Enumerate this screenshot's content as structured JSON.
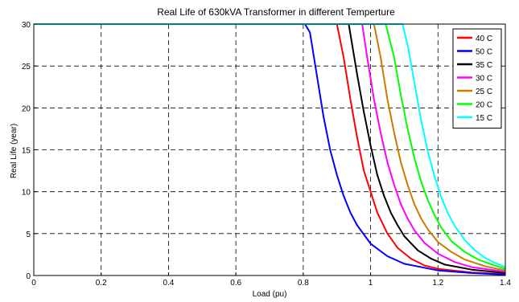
{
  "chart_data": {
    "type": "line",
    "title": "Real Life of 630kVA Transformer in different Temperture",
    "xlabel": "Load (pu)",
    "ylabel": "Real Life (year)",
    "xlim": [
      0,
      1.4
    ],
    "ylim": [
      0,
      30
    ],
    "xticks": [
      0,
      0.2,
      0.4,
      0.6,
      0.8,
      1,
      1.2,
      1.4
    ],
    "yticks": [
      0,
      5,
      10,
      15,
      20,
      25,
      30
    ],
    "xtick_labels": [
      "0",
      "0.2",
      "0.4",
      "0.6",
      "0.8",
      "1",
      "1.2",
      "1.4"
    ],
    "ytick_labels": [
      "0",
      "5",
      "10",
      "15",
      "20",
      "25",
      "30"
    ],
    "grid": true,
    "legend_position": "top-right",
    "series": [
      {
        "name": "40 C",
        "color": "#ff0000",
        "points": [
          [
            0,
            30
          ],
          [
            0.9,
            30
          ],
          [
            0.92,
            26
          ],
          [
            0.94,
            21
          ],
          [
            0.96,
            16.5
          ],
          [
            0.98,
            12.5
          ],
          [
            1.0,
            10
          ],
          [
            1.02,
            7.5
          ],
          [
            1.05,
            5
          ],
          [
            1.08,
            3.3
          ],
          [
            1.12,
            2
          ],
          [
            1.16,
            1.2
          ],
          [
            1.2,
            0.8
          ],
          [
            1.3,
            0.35
          ],
          [
            1.4,
            0.15
          ]
        ]
      },
      {
        "name": "50 C",
        "color": "#0000ff",
        "points": [
          [
            0,
            30
          ],
          [
            0.805,
            30
          ],
          [
            0.82,
            29
          ],
          [
            0.84,
            24
          ],
          [
            0.86,
            19
          ],
          [
            0.88,
            15
          ],
          [
            0.9,
            12
          ],
          [
            0.92,
            9.5
          ],
          [
            0.94,
            7.5
          ],
          [
            0.96,
            6
          ],
          [
            1.0,
            3.8
          ],
          [
            1.05,
            2.3
          ],
          [
            1.1,
            1.4
          ],
          [
            1.2,
            0.6
          ],
          [
            1.3,
            0.3
          ],
          [
            1.4,
            0.1
          ]
        ]
      },
      {
        "name": "35 C",
        "color": "#000000",
        "points": [
          [
            0,
            30
          ],
          [
            0.935,
            30
          ],
          [
            0.96,
            24
          ],
          [
            0.98,
            19.5
          ],
          [
            1.0,
            15.5
          ],
          [
            1.02,
            12
          ],
          [
            1.04,
            9.5
          ],
          [
            1.06,
            7.5
          ],
          [
            1.08,
            6
          ],
          [
            1.1,
            4.7
          ],
          [
            1.14,
            3
          ],
          [
            1.18,
            2
          ],
          [
            1.22,
            1.3
          ],
          [
            1.3,
            0.7
          ],
          [
            1.4,
            0.3
          ]
        ]
      },
      {
        "name": "30 C",
        "color": "#ff00ff",
        "points": [
          [
            0,
            30
          ],
          [
            0.975,
            30
          ],
          [
            0.99,
            26
          ],
          [
            1.01,
            21
          ],
          [
            1.03,
            17
          ],
          [
            1.05,
            13.5
          ],
          [
            1.07,
            10.8
          ],
          [
            1.09,
            8.5
          ],
          [
            1.11,
            6.8
          ],
          [
            1.13,
            5.4
          ],
          [
            1.16,
            3.9
          ],
          [
            1.2,
            2.6
          ],
          [
            1.25,
            1.6
          ],
          [
            1.3,
            1.0
          ],
          [
            1.4,
            0.45
          ]
        ]
      },
      {
        "name": "25 C",
        "color": "#cc7a00",
        "points": [
          [
            0,
            30
          ],
          [
            1.01,
            30
          ],
          [
            1.03,
            26
          ],
          [
            1.05,
            21
          ],
          [
            1.07,
            17
          ],
          [
            1.09,
            13.5
          ],
          [
            1.11,
            10.8
          ],
          [
            1.13,
            8.5
          ],
          [
            1.15,
            6.8
          ],
          [
            1.17,
            5.5
          ],
          [
            1.2,
            4
          ],
          [
            1.24,
            2.8
          ],
          [
            1.28,
            1.9
          ],
          [
            1.34,
            1.1
          ],
          [
            1.4,
            0.6
          ]
        ]
      },
      {
        "name": "20 C",
        "color": "#00ff00",
        "points": [
          [
            0,
            30
          ],
          [
            1.045,
            30
          ],
          [
            1.07,
            26
          ],
          [
            1.09,
            21.5
          ],
          [
            1.11,
            17.5
          ],
          [
            1.13,
            14
          ],
          [
            1.15,
            11.2
          ],
          [
            1.17,
            9
          ],
          [
            1.19,
            7.2
          ],
          [
            1.21,
            5.7
          ],
          [
            1.24,
            4.1
          ],
          [
            1.28,
            2.8
          ],
          [
            1.32,
            1.9
          ],
          [
            1.36,
            1.3
          ],
          [
            1.4,
            0.8
          ]
        ]
      },
      {
        "name": "15 C",
        "color": "#00ffff",
        "points": [
          [
            0,
            30
          ],
          [
            1.095,
            30
          ],
          [
            1.11,
            27.5
          ],
          [
            1.13,
            23
          ],
          [
            1.15,
            18.5
          ],
          [
            1.17,
            14.8
          ],
          [
            1.19,
            11.8
          ],
          [
            1.21,
            9.3
          ],
          [
            1.23,
            7.4
          ],
          [
            1.25,
            5.9
          ],
          [
            1.28,
            4.2
          ],
          [
            1.31,
            3
          ],
          [
            1.34,
            2.1
          ],
          [
            1.37,
            1.5
          ],
          [
            1.4,
            1.0
          ]
        ]
      }
    ]
  }
}
